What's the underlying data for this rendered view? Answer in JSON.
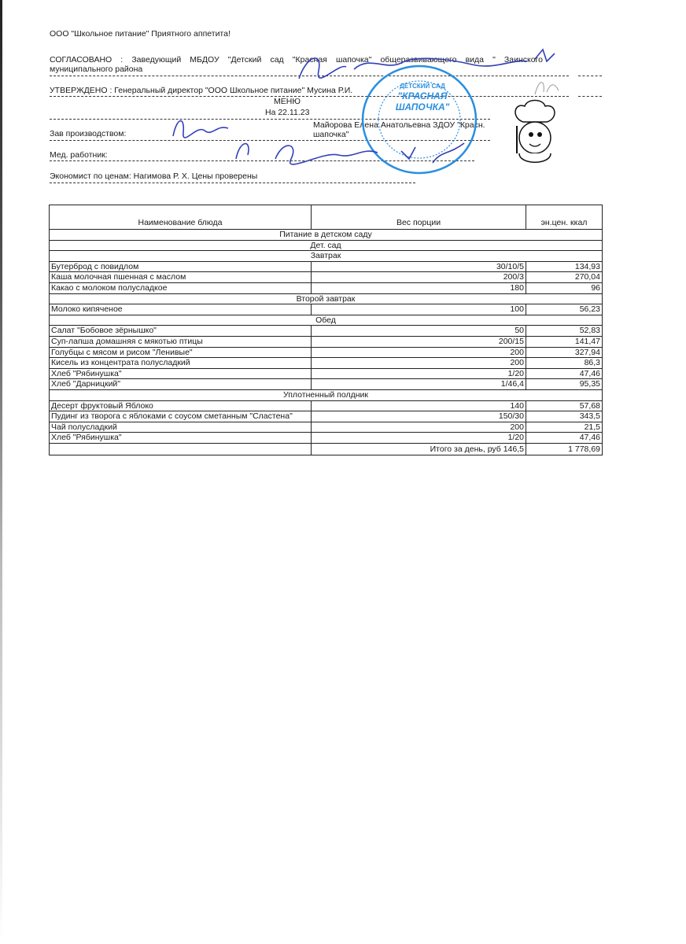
{
  "header": {
    "company_line": "ООО \"Школьное питание\" Приятного аппетита!",
    "agreed_line1": "СОГЛАСОВАНО : Заведующий МБДОУ \"Детский сад \"Красная шапочка\" общеразвивающего вида \" Заинского",
    "agreed_line2": "муниципального района",
    "approved_line": "УТВЕРЖДЕНО : Генеральный директор \"ООО Школьное питание\" Мусина Р.И.",
    "menu_title": "МЕНЮ",
    "menu_date": "На 22.11.23",
    "production_head_label": "Зав производством:",
    "deputy_line1": "Майорова Елена Анатольевна ЗДОУ \"Красн.",
    "deputy_line2": "шапочка\"",
    "medic_label": "Мед. работник:",
    "economist_line": "Экономист по ценам: Нагимова Р. Х.   Цены проверены",
    "stamp_text": [
      "ДЕТСКИЙ САД",
      "\"КРАСНАЯ",
      "ШАПОЧКА\""
    ]
  },
  "table": {
    "columns": [
      "Наименование блюда",
      "Вес порции",
      "эн.цен. ккал"
    ],
    "rows": [
      {
        "section": "Питание в детском саду"
      },
      {
        "section": "Дет. сад"
      },
      {
        "section": "Завтрак"
      },
      {
        "name": "Бутерброд с повидлом",
        "weight": "30/10/5",
        "kcal": "134,93"
      },
      {
        "name": "Каша молочная пшенная с маслом",
        "weight": "200/3",
        "kcal": "270,04"
      },
      {
        "name": "Какао с молоком полусладкое",
        "weight": "180",
        "kcal": "96"
      },
      {
        "section": "Второй завтрак"
      },
      {
        "name": "Молоко кипяченое",
        "weight": "100",
        "kcal": "56,23"
      },
      {
        "section": "Обед"
      },
      {
        "name": "Салат \"Бобовое зёрнышко\"",
        "weight": "50",
        "kcal": "52,83"
      },
      {
        "name": "Суп-лапша домашняя с мякотью птицы",
        "weight": "200/15",
        "kcal": "141,47"
      },
      {
        "name": "Голубцы с мясом и рисом \"Ленивые\"",
        "weight": "200",
        "kcal": "327,94"
      },
      {
        "name": "Кисель из концентрата полусладкий",
        "weight": "200",
        "kcal": "86,3"
      },
      {
        "name": "Хлеб \"Рябинушка\"",
        "weight": "1/20",
        "kcal": "47,46"
      },
      {
        "name": "Хлеб \"Дарницкий\"",
        "weight": "1/46,4",
        "kcal": "95,35"
      },
      {
        "section": "Уплотненный полдник"
      },
      {
        "name": "Десерт фруктовый Яблоко",
        "weight": "140",
        "kcal": "57,68"
      },
      {
        "name": "Пудинг из творога с яблоками с соусом сметанным \"Сластена\"",
        "weight": "150/30",
        "kcal": "343,5"
      },
      {
        "name": "Чай полусладкий",
        "weight": "200",
        "kcal": "21,5"
      },
      {
        "name": "Хлеб \"Рябинушка\"",
        "weight": "1/20",
        "kcal": "47,46"
      }
    ],
    "total": {
      "label": "Итого за день, руб 146,5",
      "kcal": "1 778,69"
    }
  },
  "colors": {
    "ink": "#1a1a1a",
    "stamp": "#2a8fe0",
    "signature": "#3340b8"
  }
}
